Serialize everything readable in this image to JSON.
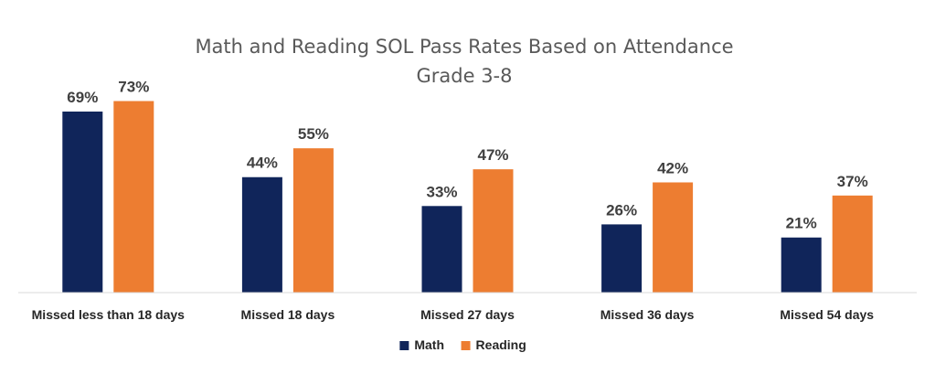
{
  "chart_data": {
    "type": "bar",
    "title": "Math and Reading SOL Pass Rates Based on Attendance",
    "subtitle": "Grade 3-8",
    "categories": [
      "Missed less than 18 days",
      "Missed 18 days",
      "Missed 27 days",
      "Missed 36 days",
      "Missed 54 days"
    ],
    "series": [
      {
        "name": "Math",
        "values": [
          69,
          44,
          33,
          26,
          21
        ],
        "labels": [
          "69%",
          "44%",
          "33%",
          "26%",
          "21%"
        ],
        "color": "#10255a"
      },
      {
        "name": "Reading",
        "values": [
          73,
          55,
          47,
          42,
          37
        ],
        "labels": [
          "73%",
          "55%",
          "47%",
          "42%",
          "37%"
        ],
        "color": "#ed7d31"
      }
    ],
    "ylim": [
      0,
      80
    ],
    "grid": false,
    "legend_position": "bottom",
    "axis_color": "#d9d9d9"
  }
}
